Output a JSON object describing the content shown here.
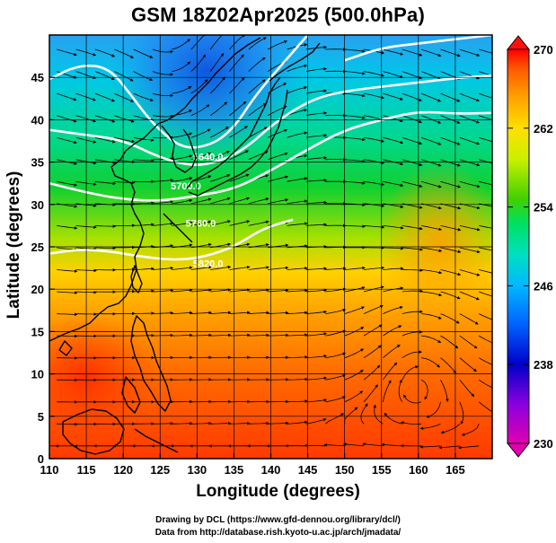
{
  "title": "GSM 18Z02Apr2025 (500.0hPa)",
  "xlabel": "Longitude (degrees)",
  "ylabel": "Latitude  (degrees)",
  "credits": {
    "line1": "Drawing by DCL (https://www.gfd-dennou.org/library/dcl/)",
    "line2": "Data from http://database.rish.kyoto-u.ac.jp/arch/jmadata/"
  },
  "map": {
    "lon_range": [
      110,
      170
    ],
    "lat_range": [
      0,
      50
    ],
    "x_ticks": [
      110,
      115,
      120,
      125,
      130,
      135,
      140,
      145,
      150,
      155,
      160,
      165
    ],
    "y_ticks": [
      0,
      5,
      10,
      15,
      20,
      25,
      30,
      35,
      40,
      45
    ],
    "grid": true,
    "contours": [
      {
        "label": "5640.0",
        "pts": [
          [
            110,
            44.8
          ],
          [
            114,
            46.5
          ],
          [
            118,
            46.2
          ],
          [
            121,
            43
          ],
          [
            124,
            39.5
          ],
          [
            128,
            36.5
          ],
          [
            132,
            37
          ],
          [
            135,
            39
          ],
          [
            138,
            43
          ],
          [
            142,
            47
          ],
          [
            145,
            50
          ]
        ]
      },
      {
        "label": "5640.0",
        "pts": [
          [
            150,
            47
          ],
          [
            155,
            48.5
          ],
          [
            160,
            49
          ],
          [
            165,
            49.5
          ],
          [
            170,
            50
          ]
        ]
      },
      {
        "label": "5700.0",
        "pts": [
          [
            110,
            38.8
          ],
          [
            115,
            38.2
          ],
          [
            120,
            37.6
          ],
          [
            125,
            35.5
          ],
          [
            129,
            34.6
          ],
          [
            132,
            34.8
          ],
          [
            136,
            36.2
          ],
          [
            141,
            40
          ],
          [
            146,
            42.6
          ],
          [
            151,
            43.5
          ],
          [
            156,
            44
          ],
          [
            161,
            44.5
          ],
          [
            166,
            45
          ],
          [
            170,
            45.2
          ]
        ]
      },
      {
        "label": "5760.0",
        "pts": [
          [
            110,
            32.5
          ],
          [
            115,
            31.4
          ],
          [
            120,
            30.6
          ],
          [
            125,
            30.4
          ],
          [
            130,
            31
          ],
          [
            135,
            31.8
          ],
          [
            140,
            34
          ],
          [
            145,
            36.5
          ],
          [
            150,
            38.8
          ],
          [
            155,
            40
          ],
          [
            160,
            41
          ],
          [
            165,
            40.7
          ],
          [
            170,
            40.8
          ]
        ]
      },
      {
        "label": "5820.0",
        "pts": [
          [
            110,
            24.2
          ],
          [
            114,
            24.7
          ],
          [
            118,
            24.5
          ],
          [
            122,
            23.9
          ],
          [
            127,
            23.4
          ],
          [
            131,
            23.8
          ],
          [
            135,
            25
          ],
          [
            139,
            27.2
          ],
          [
            143,
            28.2
          ]
        ]
      }
    ],
    "contour_labels": [
      {
        "label": "5640.0",
        "lon": 131.5,
        "lat": 35.2
      },
      {
        "label": "5700.0",
        "lon": 128.5,
        "lat": 31.8
      },
      {
        "label": "5760.0",
        "lon": 130.5,
        "lat": 27.4
      },
      {
        "label": "5820.0",
        "lon": 131.5,
        "lat": 22.6
      }
    ]
  },
  "colorbar": {
    "min": 230,
    "max": 270,
    "ticks": [
      230,
      238,
      246,
      254,
      262,
      270
    ],
    "colors": [
      "#e000b0",
      "#8a00e0",
      "#0000c8",
      "#0060ff",
      "#00b8ff",
      "#00e0d0",
      "#00e060",
      "#40d000",
      "#c8f000",
      "#ffe000",
      "#ffa000",
      "#ff5a00",
      "#ff0000"
    ]
  },
  "icons": {
    "streamlines": "streamline-arrow-icon",
    "colorbar_top": "triangle-up-icon",
    "colorbar_bottom": "triangle-down-icon"
  }
}
